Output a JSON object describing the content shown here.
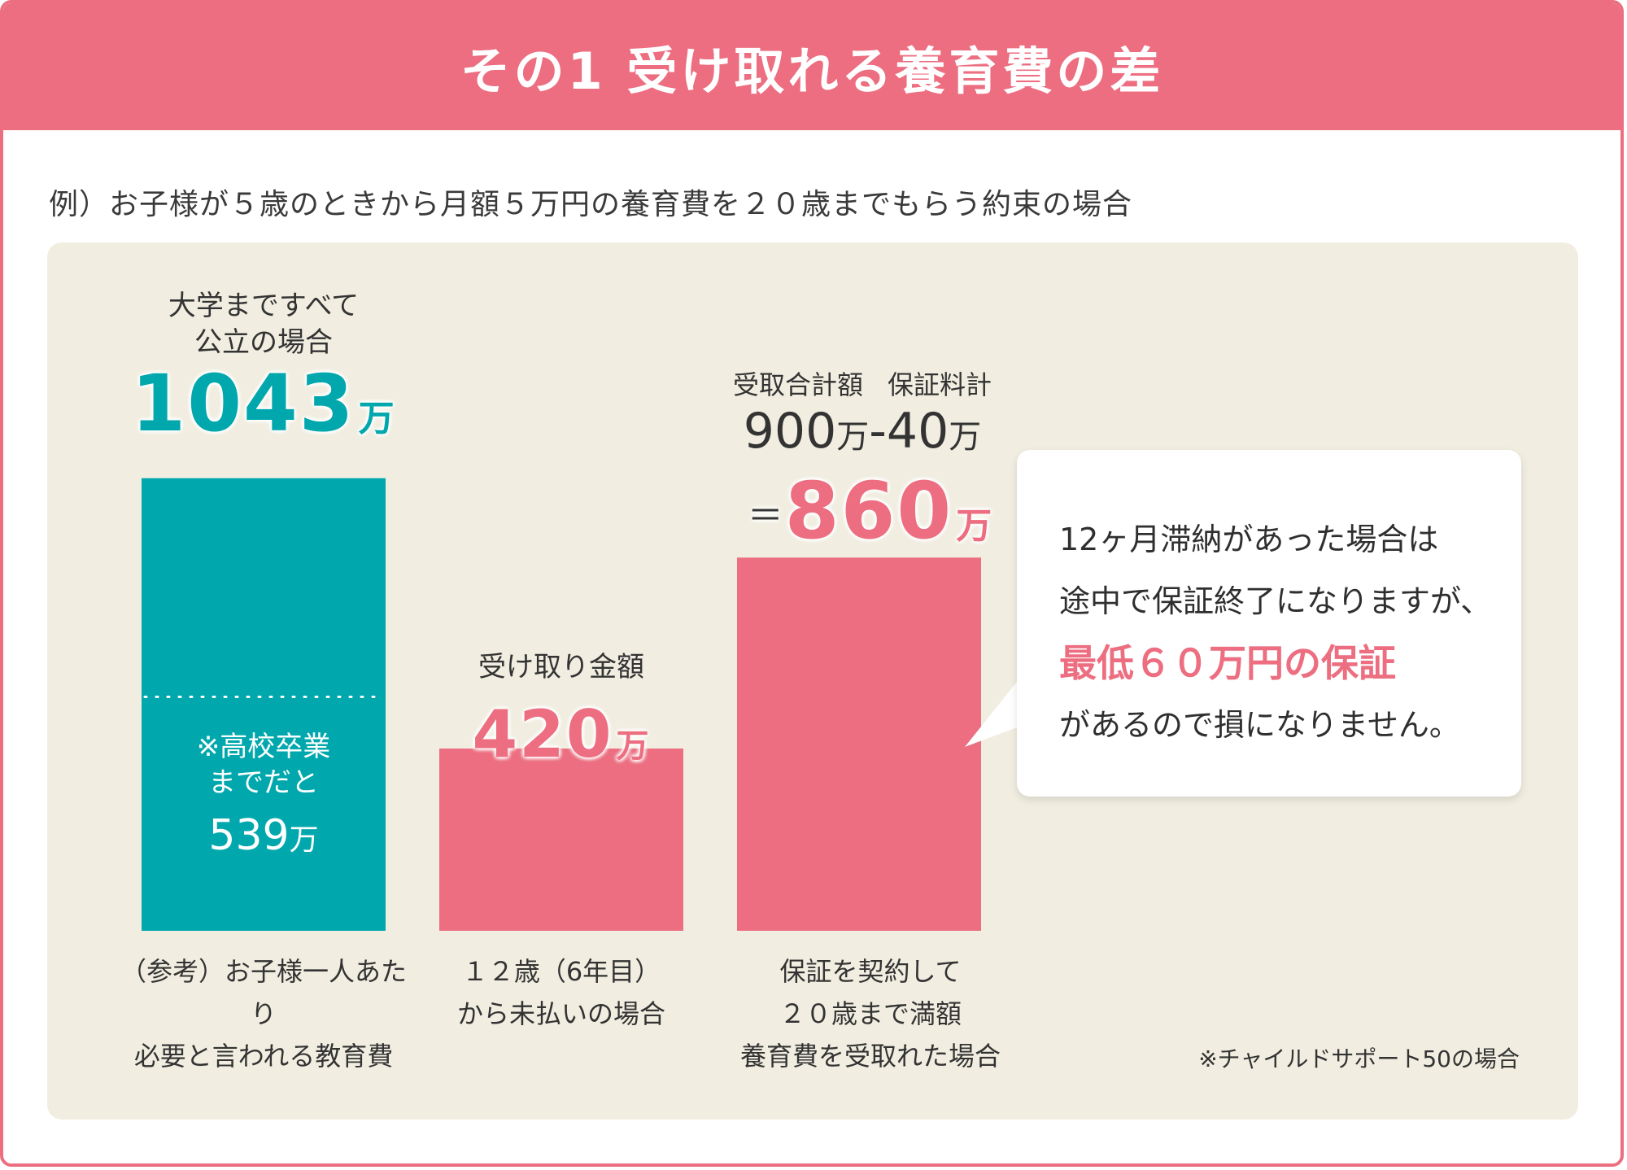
{
  "title": "その1 受け取れる養育費の差",
  "example": "例）お子様が５歳のときから月額５万円の養育費を２０歳までもらう約束の場合",
  "chart_data": {
    "type": "bar",
    "unit": "万",
    "ylim": [
      0,
      1050
    ],
    "bars": [
      {
        "name": "education",
        "value": 1043,
        "color": "#00a8ad",
        "top_label_line1": "大学まですべて",
        "top_label_line2": "公立の場合",
        "value_text": "1043",
        "unit_text": "万",
        "bottom_label_line1": "（参考）お子様一人あたり",
        "bottom_label_line2": "必要と言われる教育費",
        "sub_value": 539,
        "sub_label_line1": "※高校卒業",
        "sub_label_line2": "までだと",
        "sub_value_text": "539",
        "sub_unit_text": "万"
      },
      {
        "name": "unpaid",
        "value": 420,
        "color": "#ec6e80",
        "top_label_line1": "受け取り金額",
        "value_text": "420",
        "unit_text": "万",
        "bottom_label_line1": "１２歳（6年目）",
        "bottom_label_line2": "から未払いの場合"
      },
      {
        "name": "guaranteed",
        "value": 860,
        "color": "#ec6e80",
        "formula_label_left": "受取合計額",
        "formula_label_right": "保証料計",
        "formula_a": "900",
        "formula_a_unit": "万",
        "formula_minus": "-",
        "formula_b": "40",
        "formula_b_unit": "万",
        "equals": "＝",
        "value_text": "860",
        "unit_text": "万",
        "bottom_label_line1": "保証を契約して",
        "bottom_label_line2": "２０歳まで満額",
        "bottom_label_line3": "養育費を受取れた場合"
      }
    ]
  },
  "callout": {
    "line1": "12ヶ月滞納があった場合は",
    "line2": "途中で保証終了になりますが、",
    "emphasis": "最低６０万円の保証",
    "line4": "があるので損になりません。"
  },
  "note": "※チャイルドサポート50の場合"
}
